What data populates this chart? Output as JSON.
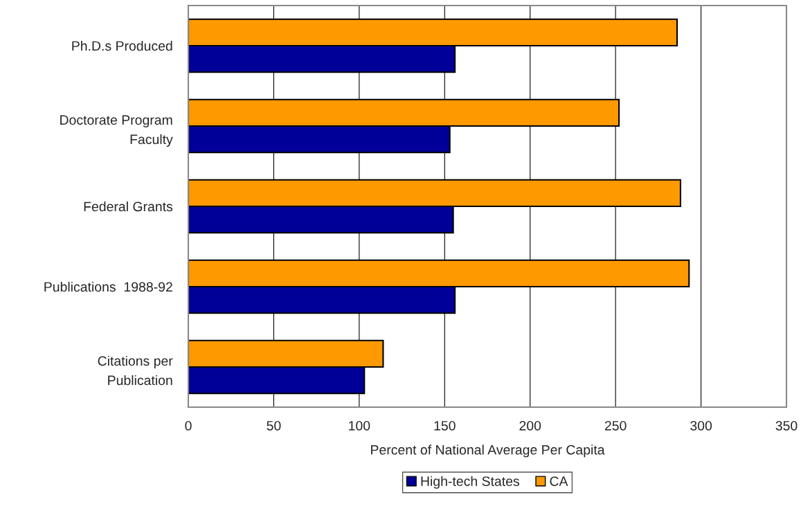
{
  "chart_data": {
    "type": "bar",
    "orientation": "horizontal",
    "categories": [
      "Ph.D.s Produced",
      "Doctorate Program\nFaculty",
      "Federal Grants",
      "Publications  1988-92",
      "Citations per\nPublication"
    ],
    "series": [
      {
        "name": "High-tech States",
        "color": "#000099",
        "values": [
          156,
          153,
          155,
          156,
          103
        ]
      },
      {
        "name": "CA",
        "color": "#ff9900",
        "values": [
          286,
          252,
          288,
          293,
          114
        ]
      }
    ],
    "xlabel": "Percent of National Average Per Capita",
    "xlim": [
      0,
      350
    ],
    "xticks": [
      0,
      50,
      100,
      150,
      200,
      250,
      300,
      350
    ],
    "grid": "x",
    "legend": "bottom"
  }
}
